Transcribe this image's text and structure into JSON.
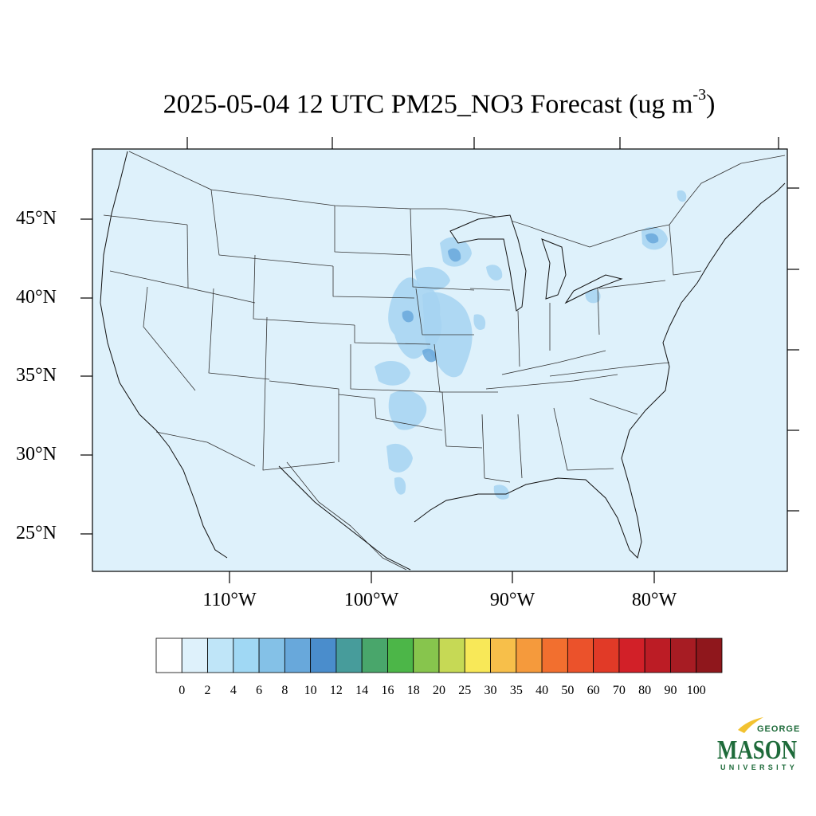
{
  "title": {
    "main": "2025-05-04 12 UTC PM25_NO3 Forecast (ug m",
    "sup": "-3",
    "close": ")"
  },
  "latitude_labels": [
    "45°N",
    "40°N",
    "35°N",
    "30°N",
    "25°N"
  ],
  "longitude_labels": [
    "110°W",
    "100°W",
    "90°W",
    "80°W"
  ],
  "colorbar": {
    "labels": [
      "0",
      "2",
      "4",
      "6",
      "8",
      "10",
      "12",
      "14",
      "16",
      "18",
      "20",
      "25",
      "30",
      "35",
      "40",
      "50",
      "60",
      "70",
      "80",
      "90",
      "100"
    ],
    "colors": [
      "#ffffff",
      "#def1fb",
      "#bfe5f8",
      "#a0d8f4",
      "#84c1e7",
      "#68a8db",
      "#4a8dcc",
      "#479c9b",
      "#49a66b",
      "#4cb648",
      "#87c54d",
      "#c6d955",
      "#f8e858",
      "#f7bf4a",
      "#f59a3c",
      "#f26f2f",
      "#eb522b",
      "#e13a27",
      "#d22028",
      "#bc1c25",
      "#a71c23",
      "#8f171c"
    ]
  },
  "map": {
    "background_color": "#def1fb",
    "plume_color": "#a6d3f1",
    "plume_dark_color": "#68a8db"
  },
  "logo": {
    "line1": "GEORGE",
    "line2": "MASON",
    "line3": "UNIVERSITY"
  }
}
